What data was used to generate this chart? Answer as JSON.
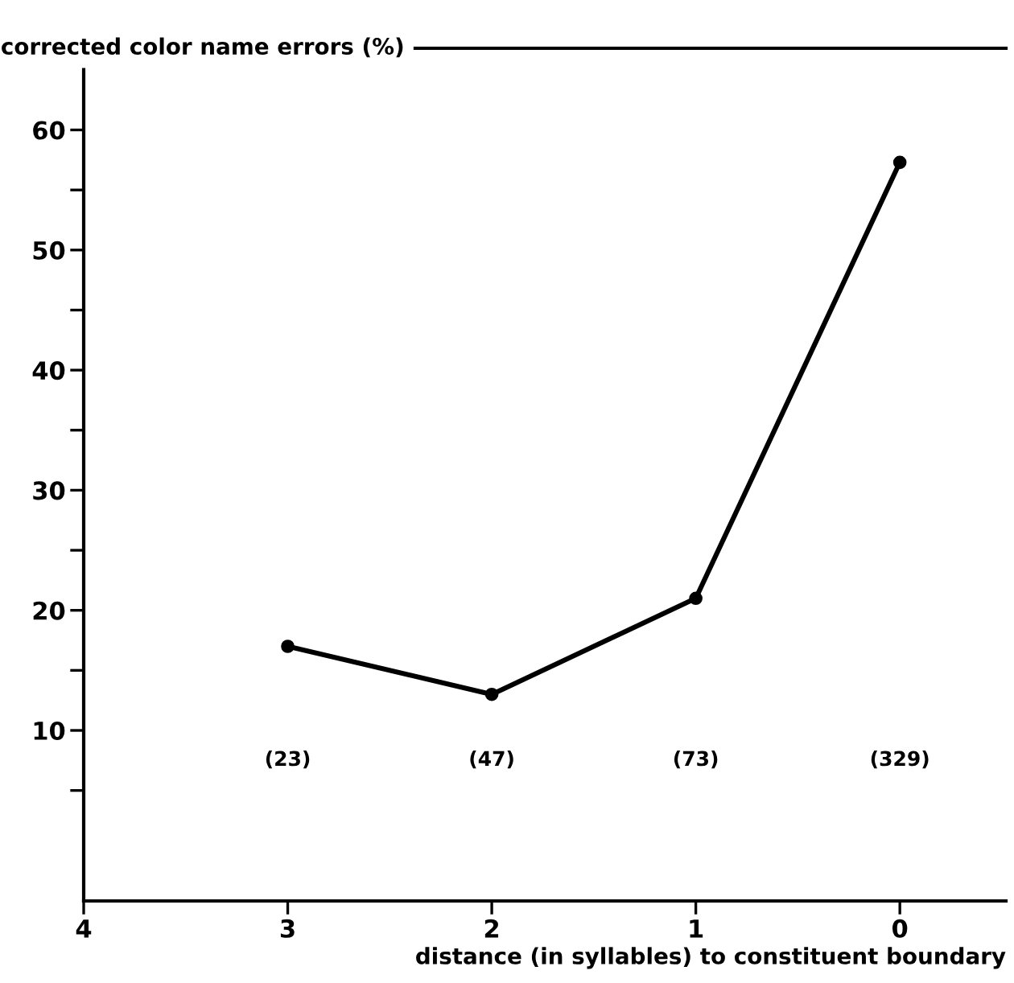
{
  "chart_data": {
    "type": "line",
    "ylabel": "corrected color name errors (%)",
    "xlabel": "distance (in syllables) to constituent boundary",
    "x": [
      3,
      2,
      1,
      0
    ],
    "series": [
      {
        "color": "#000000",
        "values": [
          17,
          13,
          21,
          57.3
        ]
      }
    ],
    "xlim": [
      4,
      -0.52
    ],
    "xticks": [
      4,
      3,
      2,
      1,
      0
    ],
    "ylim": [
      -4.2,
      66.8
    ],
    "yticks": [
      {
        "value": 5,
        "label": null
      },
      10,
      {
        "value": 15,
        "label": null
      },
      20,
      {
        "value": 25,
        "label": null
      },
      30,
      {
        "value": 35,
        "label": null
      },
      40,
      {
        "value": 45,
        "label": null
      },
      50,
      {
        "value": 55,
        "label": null
      },
      60
    ],
    "marker": "circle",
    "line_style": "solid",
    "grid": false,
    "annotations": [
      "(23)",
      "(47)",
      "(73)",
      "(329)"
    ]
  }
}
